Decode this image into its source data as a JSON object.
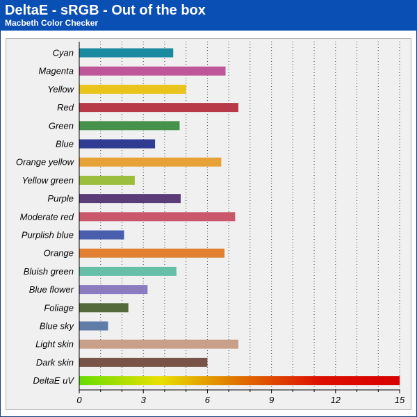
{
  "header": {
    "title": "DeltaE - sRGB - Out of the box",
    "subtitle": "Macbeth Color Checker"
  },
  "chart_data": {
    "type": "bar",
    "orientation": "horizontal",
    "title": "DeltaE - sRGB - Out of the box",
    "subtitle": "Macbeth Color Checker",
    "xlabel": "",
    "ylabel": "",
    "xlim": [
      0,
      15
    ],
    "xticks": [
      0,
      3,
      6,
      9,
      12,
      15
    ],
    "grid": "vertical-dotted",
    "legend": "none",
    "categories": [
      "Cyan",
      "Magenta",
      "Yellow",
      "Red",
      "Green",
      "Blue",
      "Orange yellow",
      "Yellow green",
      "Purple",
      "Moderate red",
      "Purplish blue",
      "Orange",
      "Bluish green",
      "Blue flower",
      "Foliage",
      "Blue sky",
      "Light skin",
      "Dark skin",
      "DeltaE uV"
    ],
    "values": [
      4.4,
      6.85,
      5.0,
      7.45,
      4.7,
      3.55,
      6.65,
      2.6,
      4.75,
      7.3,
      2.1,
      6.8,
      4.55,
      3.2,
      2.3,
      1.35,
      7.45,
      6.0,
      15.0
    ],
    "colors": [
      "#1a8aa0",
      "#c0569a",
      "#e8c41c",
      "#b83a48",
      "#47924a",
      "#303c92",
      "#e6a236",
      "#9cbe3e",
      "#5c3c78",
      "#c8586a",
      "#4a5eae",
      "#e08030",
      "#66c0a8",
      "#8a7cbe",
      "#546a3c",
      "#607ca8",
      "#c8a08a",
      "#785448",
      "gradient"
    ],
    "gradient_colors": [
      "#66dd00",
      "#e8e000",
      "#e07000",
      "#dd1000",
      "#d80000"
    ]
  }
}
